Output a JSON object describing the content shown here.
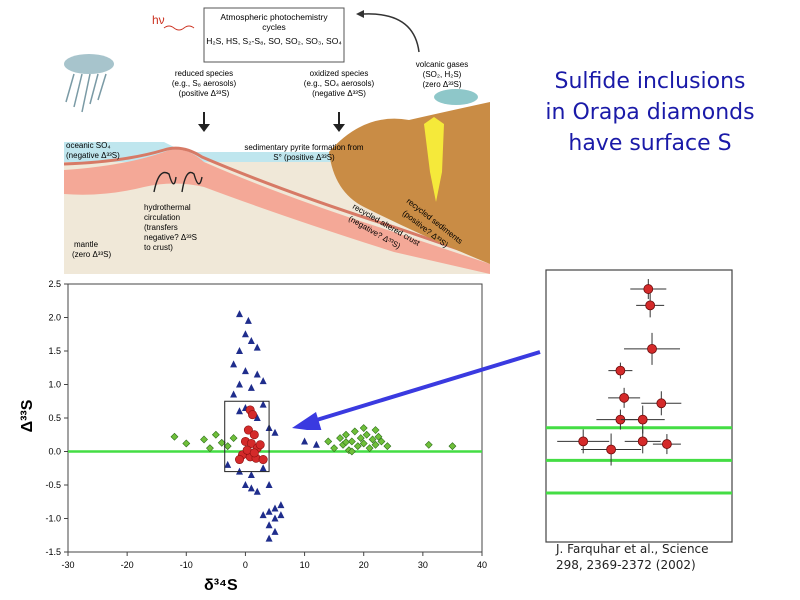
{
  "slide": {
    "title": "Sulfide inclusions\nin Orapa diamonds\nhave surface S",
    "citation": "J. Farquhar et al., Science\n298, 2369-2372 (2002)"
  },
  "diagram": {
    "hv": "hν",
    "box_title_1": "Atmospheric photochemistry",
    "box_title_2": "cycles",
    "box_species": "H₂S, HS, S₂-S₈, SO, SO₂, SO₃, SO₄",
    "reduced_1": "reduced species",
    "reduced_2": "(e.g., S₈ aerosols)",
    "reduced_3": "(positive Δ³³S)",
    "oxidized_1": "oxidized species",
    "oxidized_2": "(e.g., SO₄ aerosols)",
    "oxidized_3": "(negative Δ³³S)",
    "volcanic_1": "volcanic gases",
    "volcanic_2": "(SO₂, H₂S)",
    "volcanic_3": "(zero Δ³³S)",
    "oceanic_1": "oceanic SO₄",
    "oceanic_2": "(negative Δ³³S)",
    "pyrite_1": "sedimentary pyrite formation from",
    "pyrite_2": "S° (positive Δ³³S)",
    "hydro_1": "hydrothermal",
    "hydro_2": "circulation",
    "hydro_3": "(transfers",
    "hydro_4": "negative? Δ³³S",
    "hydro_5": "to crust)",
    "mantle_1": "mantle",
    "mantle_2": "(zero Δ³³S)",
    "altered_1": "recycled altered crust",
    "altered_2": "(negative? Δ³³S)",
    "recycled_1": "recycled sediments",
    "recycled_2": "(positive? Δ³³S)"
  },
  "chart_data": [
    {
      "type": "scatter",
      "xlabel": "δ³⁴S",
      "ylabel": "Δ³³S",
      "xlim": [
        -30,
        40
      ],
      "ylim": [
        -1.5,
        2.5
      ],
      "x_ticks": [
        "-30",
        "-20",
        "-10",
        "0",
        "10",
        "20",
        "30",
        "40"
      ],
      "y_ticks": [
        "2.5",
        "2.0",
        "1.5",
        "1.0",
        "0.5",
        "0.0",
        "-0.5",
        "-1.0",
        "-1.5"
      ],
      "reference_line_y": 0,
      "colors": {
        "triangle": "#1f2d8c",
        "diamond": "#6fbf3a",
        "circle": "#d42a2a",
        "zero_line": "#44dd44"
      },
      "series": [
        {
          "marker": "triangle",
          "points": [
            [
              -1,
              2.05
            ],
            [
              0.5,
              1.95
            ],
            [
              0,
              1.75
            ],
            [
              1,
              1.65
            ],
            [
              -1,
              1.5
            ],
            [
              2,
              1.55
            ],
            [
              -2,
              1.3
            ],
            [
              0,
              1.2
            ],
            [
              2,
              1.15
            ],
            [
              -1,
              1.0
            ],
            [
              1,
              0.95
            ],
            [
              3,
              1.05
            ],
            [
              -2,
              0.85
            ],
            [
              -1,
              0.6
            ],
            [
              0,
              0.65
            ],
            [
              3,
              0.7
            ],
            [
              2,
              0.5
            ],
            [
              4,
              0.35
            ],
            [
              5,
              0.28
            ],
            [
              10,
              0.15
            ],
            [
              12,
              0.1
            ],
            [
              -3,
              -0.2
            ],
            [
              -1,
              -0.3
            ],
            [
              1,
              -0.35
            ],
            [
              3,
              -0.25
            ],
            [
              0,
              -0.5
            ],
            [
              1,
              -0.55
            ],
            [
              2,
              -0.6
            ],
            [
              4,
              -0.5
            ],
            [
              4,
              -0.9
            ],
            [
              5,
              -1.0
            ],
            [
              4,
              -1.1
            ],
            [
              5,
              -1.2
            ],
            [
              3,
              -0.95
            ],
            [
              6,
              -0.95
            ],
            [
              4,
              -1.3
            ],
            [
              5,
              -0.85
            ],
            [
              6,
              -0.8
            ]
          ]
        },
        {
          "marker": "diamond",
          "points": [
            [
              -12,
              0.22
            ],
            [
              -10,
              0.12
            ],
            [
              -7,
              0.18
            ],
            [
              -6,
              0.05
            ],
            [
              -5,
              0.25
            ],
            [
              -4,
              0.13
            ],
            [
              -2,
              0.2
            ],
            [
              -3,
              0.08
            ],
            [
              14,
              0.15
            ],
            [
              15,
              0.05
            ],
            [
              16,
              0.2
            ],
            [
              16.5,
              0.1
            ],
            [
              17,
              0.25
            ],
            [
              17.5,
              0.02
            ],
            [
              18,
              0.15
            ],
            [
              18.5,
              0.3
            ],
            [
              19,
              0.08
            ],
            [
              19.5,
              0.2
            ],
            [
              20,
              0.12
            ],
            [
              20.5,
              0.25
            ],
            [
              21,
              0.05
            ],
            [
              21.5,
              0.18
            ],
            [
              22,
              0.1
            ],
            [
              22.5,
              0.22
            ],
            [
              23,
              0.15
            ],
            [
              24,
              0.08
            ],
            [
              20,
              0.35
            ],
            [
              18,
              0.0
            ],
            [
              22,
              0.32
            ],
            [
              17,
              0.14
            ],
            [
              31,
              0.1
            ],
            [
              35,
              0.08
            ]
          ]
        },
        {
          "marker": "circle",
          "points": [
            [
              0.8,
              0.62
            ],
            [
              1.2,
              0.55
            ],
            [
              0.5,
              0.32
            ],
            [
              1.5,
              0.25
            ],
            [
              0,
              0.15
            ],
            [
              1,
              0.12
            ],
            [
              2,
              0.05
            ],
            [
              -0.5,
              -0.05
            ],
            [
              0.8,
              -0.08
            ],
            [
              1.8,
              -0.1
            ],
            [
              3,
              -0.12
            ],
            [
              -1,
              -0.12
            ],
            [
              0.3,
              0.02
            ],
            [
              2.5,
              0.1
            ],
            [
              1.5,
              -0.02
            ]
          ]
        }
      ],
      "inset_box": {
        "x": [
          -3.5,
          4
        ],
        "y": [
          -0.3,
          0.75
        ]
      }
    },
    {
      "type": "scatter",
      "xlabel": "",
      "ylabel": "",
      "zero_lines": 3,
      "series": [
        {
          "marker": "circle",
          "points": [
            [
              0.55,
              0.93
            ],
            [
              0.56,
              0.87
            ],
            [
              0.57,
              0.71
            ],
            [
              0.4,
              0.63
            ],
            [
              0.42,
              0.53
            ],
            [
              0.62,
              0.51
            ],
            [
              0.4,
              0.45
            ],
            [
              0.52,
              0.45
            ],
            [
              0.52,
              0.37
            ],
            [
              0.2,
              0.37
            ],
            [
              0.35,
              0.34
            ],
            [
              0.65,
              0.36
            ]
          ]
        }
      ]
    }
  ]
}
